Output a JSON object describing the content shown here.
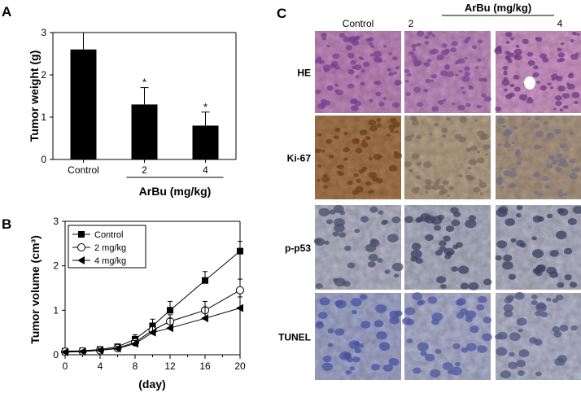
{
  "panel_labels": {
    "a": "A",
    "b": "B",
    "c": "C"
  },
  "colors": {
    "bar": "#000000",
    "axis": "#000000",
    "hatch": "#666666"
  },
  "chart_data": [
    {
      "type": "bar",
      "panel": "A",
      "ylabel": "Tumor weight (g)",
      "group_label": "ArBu (mg/kg)",
      "categories": [
        "Control",
        "2",
        "4"
      ],
      "values": [
        2.6,
        1.3,
        0.8
      ],
      "errors": [
        0.4,
        0.4,
        0.32
      ],
      "annotations": [
        "",
        "*",
        "*"
      ],
      "ylim": [
        0,
        3
      ],
      "yticks": [
        "0",
        "1",
        "2",
        "3"
      ]
    },
    {
      "type": "line",
      "panel": "B",
      "ylabel": "Tumor volume (cm³)",
      "xlabel": "(day)",
      "xlim": [
        0,
        20
      ],
      "ylim": [
        0,
        3
      ],
      "xticks": [
        "0",
        "4",
        "8",
        "12",
        "16",
        "20"
      ],
      "yticks": [
        "0",
        "1",
        "2",
        "3"
      ],
      "legend_position": "top-left",
      "x": [
        0,
        2,
        4,
        6,
        8,
        10,
        12,
        16,
        20
      ],
      "series": [
        {
          "name": "Control",
          "marker": "square-filled",
          "values": [
            0.08,
            0.09,
            0.12,
            0.18,
            0.35,
            0.65,
            1.0,
            1.67,
            2.33
          ],
          "errors": [
            0.03,
            0.03,
            0.04,
            0.05,
            0.1,
            0.15,
            0.2,
            0.2,
            0.22
          ]
        },
        {
          "name": "2 mg/kg",
          "marker": "circle-open",
          "values": [
            0.07,
            0.08,
            0.1,
            0.15,
            0.28,
            0.55,
            0.75,
            1.0,
            1.45
          ],
          "errors": [
            0.03,
            0.03,
            0.04,
            0.05,
            0.08,
            0.15,
            0.15,
            0.2,
            0.25
          ]
        },
        {
          "name": "4 mg/kg",
          "marker": "triangle-left-filled",
          "values": [
            0.06,
            0.07,
            0.1,
            0.14,
            0.25,
            0.5,
            0.6,
            0.82,
            1.05
          ],
          "errors": [
            0.03,
            0.03,
            0.04,
            0.05,
            0.07,
            0.2,
            0.22,
            0.25,
            0.25
          ]
        }
      ]
    }
  ],
  "micrographs": {
    "group_label": "ArBu (mg/kg)",
    "columns": [
      "Control",
      "2",
      "4"
    ],
    "rows": [
      "HE",
      "Ki-67",
      "p-p53",
      "TUNEL"
    ]
  }
}
